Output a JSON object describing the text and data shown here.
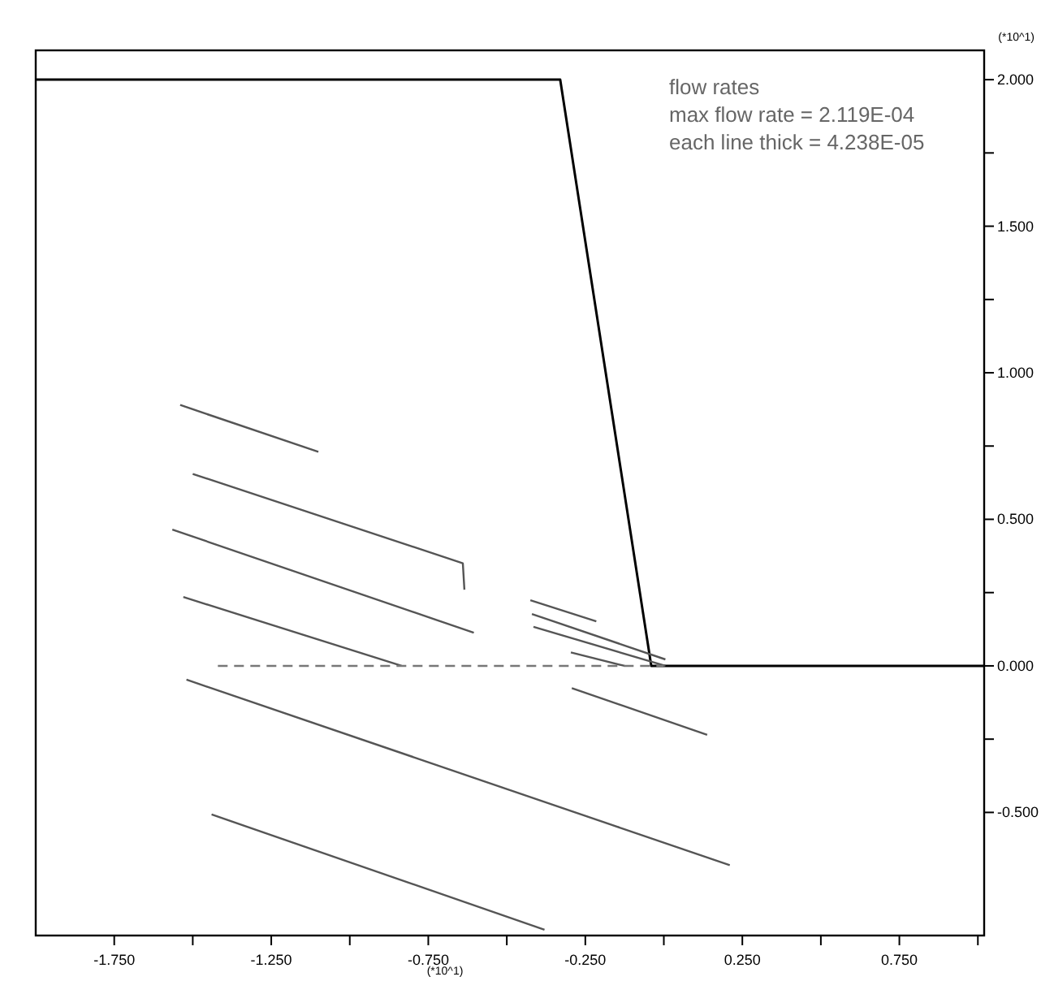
{
  "chart_data": {
    "type": "line",
    "xlabel": "(*10^1)",
    "ylabel": "(*10^1)",
    "xlim": [
      -2.0,
      1.02
    ],
    "ylim": [
      -0.92,
      2.1
    ],
    "xticks": [
      {
        "value": -1.75,
        "label": "-1.750"
      },
      {
        "value": -1.5,
        "label": null
      },
      {
        "value": -1.25,
        "label": "-1.250"
      },
      {
        "value": -1.0,
        "label": null
      },
      {
        "value": -0.75,
        "label": "-0.750"
      },
      {
        "value": -0.5,
        "label": null
      },
      {
        "value": -0.25,
        "label": "-0.250"
      },
      {
        "value": 0,
        "label": null
      },
      {
        "value": 0.25,
        "label": "0.250"
      },
      {
        "value": 0.5,
        "label": null
      },
      {
        "value": 0.75,
        "label": "0.750"
      },
      {
        "value": 1.0,
        "label": null
      }
    ],
    "yticks": [
      {
        "value": 2,
        "label": "2.000"
      },
      {
        "value": 1.75,
        "label": null
      },
      {
        "value": 1.5,
        "label": "1.500"
      },
      {
        "value": 1.25,
        "label": null
      },
      {
        "value": 1,
        "label": "1.000"
      },
      {
        "value": 0.75,
        "label": null
      },
      {
        "value": 0.5,
        "label": "0.500"
      },
      {
        "value": 0.25,
        "label": null
      },
      {
        "value": 0,
        "label": "0.000"
      },
      {
        "value": -0.25,
        "label": null
      },
      {
        "value": -0.5,
        "label": "-0.500"
      }
    ],
    "grid": false,
    "line_style": "solid",
    "annotations": [
      "flow rates",
      "max flow rate =   2.119E-04",
      "each line thick = 4.238E-05"
    ],
    "series": [
      {
        "color": "#000000",
        "x": [
          -2.0,
          -0.33,
          -0.04,
          1.02
        ],
        "values": [
          2.0,
          2.0,
          0.0,
          0.0
        ]
      },
      {
        "color": "#555555",
        "x": [
          -1.54,
          -1.1
        ],
        "values": [
          0.89,
          0.73
        ]
      },
      {
        "color": "#555555",
        "x": [
          -1.5,
          -0.64,
          -0.635
        ],
        "values": [
          0.655,
          0.35,
          0.26
        ]
      },
      {
        "color": "#555555",
        "x": [
          -1.565,
          -0.605
        ],
        "values": [
          0.465,
          0.113
        ]
      },
      {
        "color": "#555555",
        "x": [
          -1.53,
          -0.835
        ],
        "values": [
          0.235,
          0.0
        ]
      },
      {
        "color": "#555555",
        "x": [
          -0.425,
          -0.215
        ],
        "values": [
          0.224,
          0.152
        ]
      },
      {
        "color": "#555555",
        "x": [
          -0.42,
          0.005
        ],
        "values": [
          0.177,
          0.022
        ]
      },
      {
        "color": "#555555",
        "x": [
          -0.415,
          0.005
        ],
        "values": [
          0.133,
          0.0
        ]
      },
      {
        "color": "#555555",
        "x": [
          -0.296,
          -0.125
        ],
        "values": [
          0.046,
          0.0
        ]
      },
      {
        "color": "#777777",
        "line_style": "dashed",
        "x": [
          -1.42,
          0.0
        ],
        "values": [
          0.0,
          0.0
        ]
      },
      {
        "color": "#555555",
        "x": [
          -1.52,
          0.21
        ],
        "values": [
          -0.047,
          -0.68
        ]
      },
      {
        "color": "#555555",
        "x": [
          -0.293,
          0.138
        ],
        "values": [
          -0.076,
          -0.235
        ]
      },
      {
        "color": "#555555",
        "x": [
          -1.44,
          -0.38
        ],
        "values": [
          -0.507,
          -0.9
        ]
      }
    ]
  }
}
